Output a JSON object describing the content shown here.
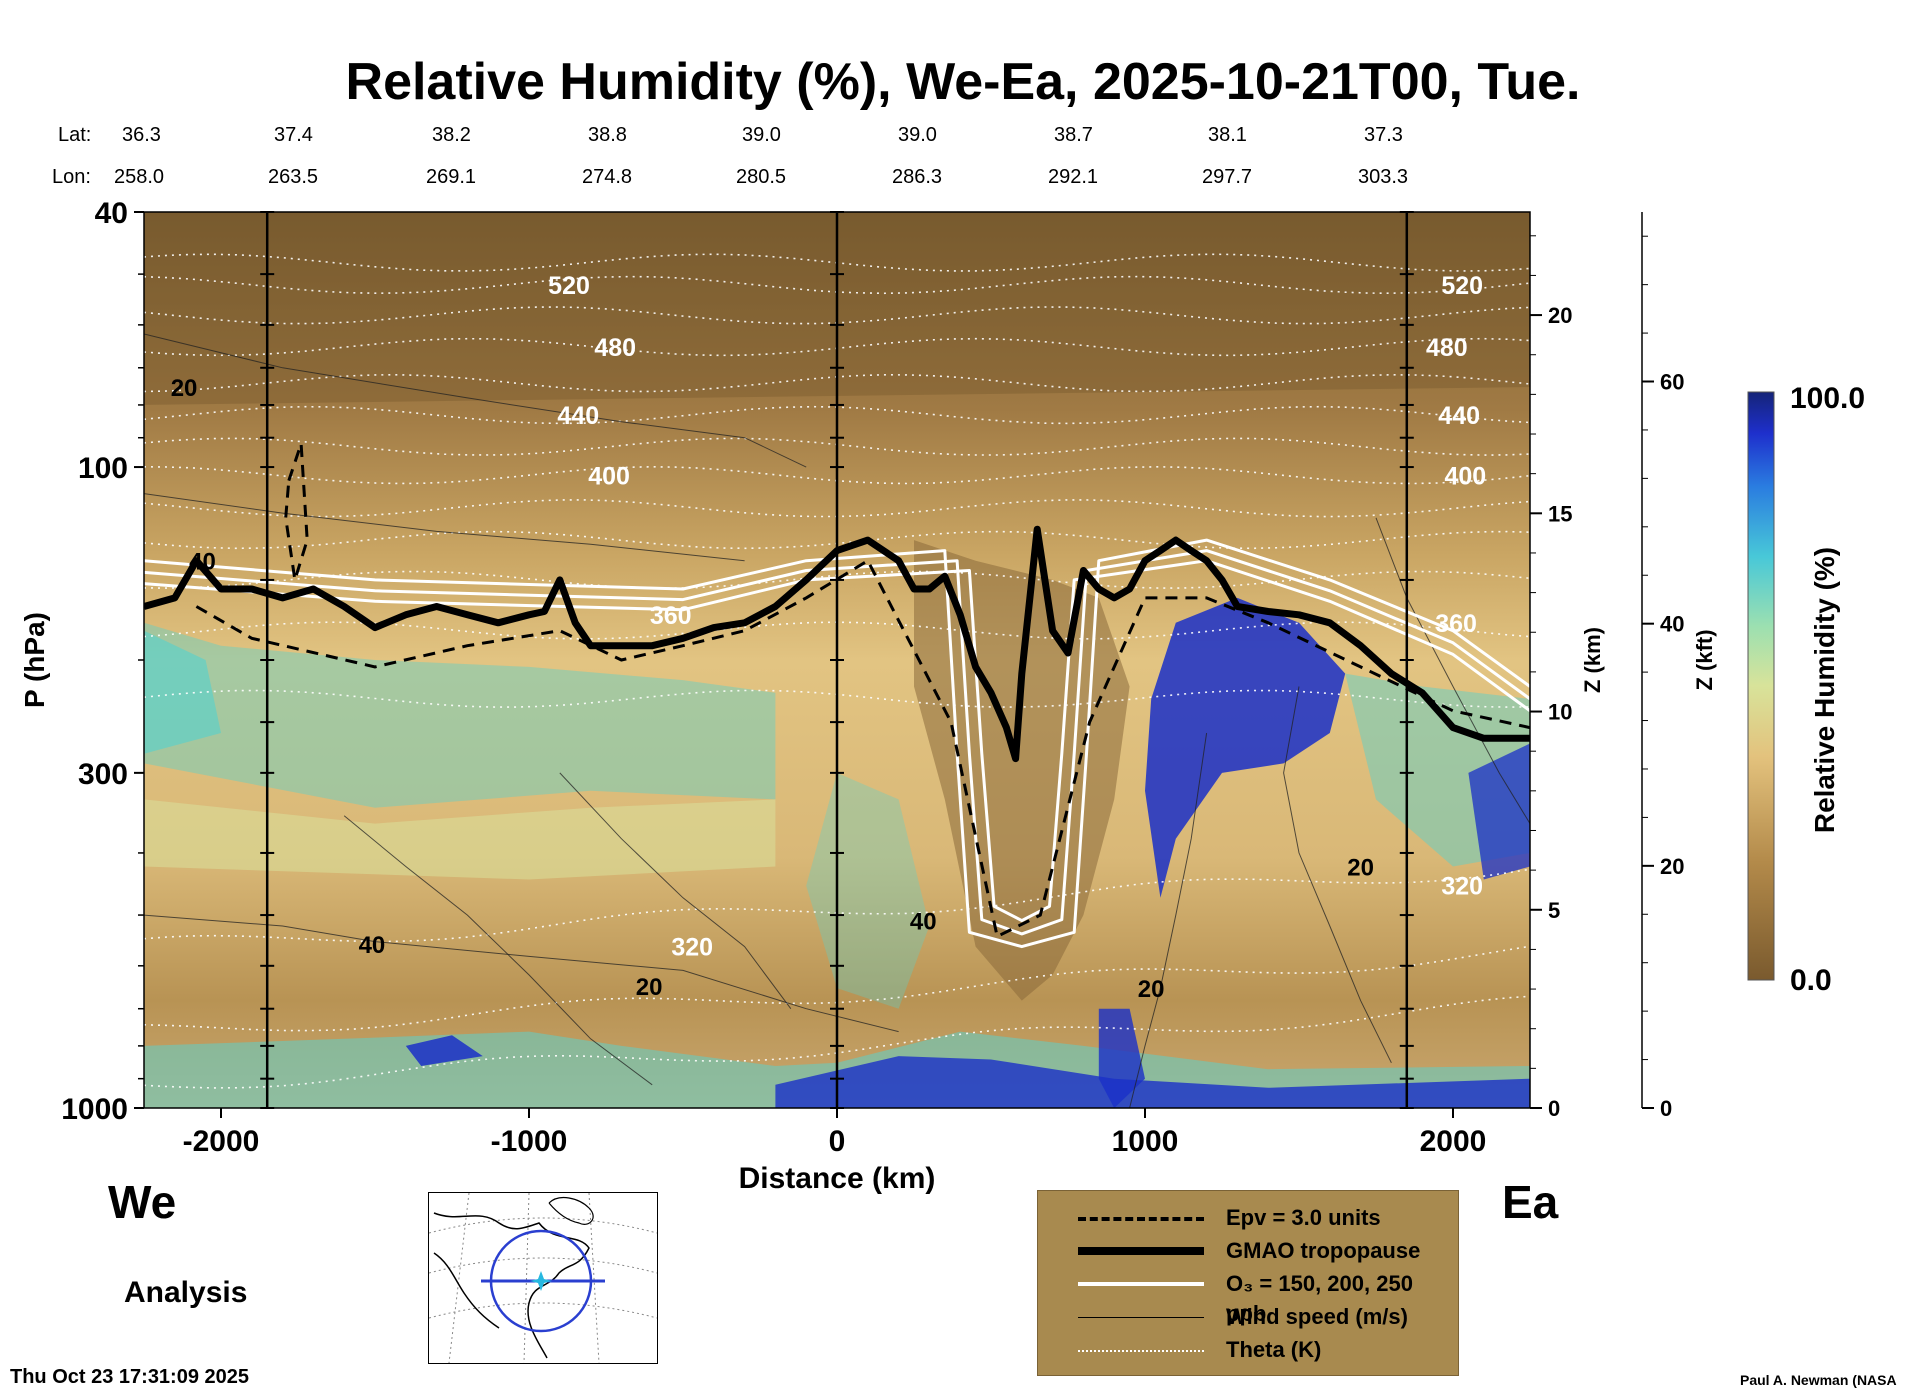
{
  "title": "Relative Humidity (%), We-Ea, 2025-10-21T00, Tue.",
  "lat_label": "Lat:",
  "lon_label": "Lon:",
  "lat_ticks": [
    "36.3",
    "37.4",
    "38.2",
    "38.8",
    "39.0",
    "39.0",
    "38.7",
    "38.1",
    "37.3"
  ],
  "lon_ticks": [
    "258.0",
    "263.5",
    "269.1",
    "274.8",
    "280.5",
    "286.3",
    "292.1",
    "297.7",
    "303.3"
  ],
  "left_label": "We",
  "right_label": "Ea",
  "analysis_label": "Analysis",
  "timestamp": "Thu Oct 23 17:31:09 2025",
  "credit": "Paul A. Newman (NASA",
  "legend": {
    "epv": "Epv = 3.0 units",
    "tropopause": "GMAO tropopause",
    "o3": "O₃ = 150, 200, 250 ppb",
    "wind": "Wind speed (m/s)",
    "theta": "Theta (K)"
  },
  "colors": {
    "dry": "#8a6a3a",
    "mid": "#e6c886",
    "moist": "#5fd0c8",
    "wet": "#1a2fc8",
    "legend_bg": "#a88a4f"
  },
  "chart_data": {
    "type": "heatmap",
    "title": "Relative Humidity (%), We-Ea, 2025-10-21T00, Tue.",
    "xlabel": "Distance (km)",
    "ylabel": "P (hPa)",
    "y2label": "Z (km)",
    "y3label": "Z (kft)",
    "colorbar_label": "Relative Humidity (%)",
    "colorbar_range": [
      0.0,
      100.0
    ],
    "colorbar_tick_labels": [
      "100.0",
      "0.0"
    ],
    "xlim": [
      -2250,
      2250
    ],
    "ylim": [
      1000,
      40
    ],
    "y_scale": "log",
    "x_ticks": [
      -2000,
      -1000,
      0,
      1000,
      2000
    ],
    "y_ticks": [
      1000,
      300,
      100,
      40
    ],
    "z_km_ticks": [
      0,
      5,
      10,
      15,
      20
    ],
    "z_kft_ticks": [
      0,
      20,
      40,
      60
    ],
    "theta_labels": [
      {
        "x": -870,
        "p": 52,
        "text": "520"
      },
      {
        "x": 2030,
        "p": 52,
        "text": "520"
      },
      {
        "x": -720,
        "p": 65,
        "text": "480"
      },
      {
        "x": 1980,
        "p": 65,
        "text": "480"
      },
      {
        "x": -840,
        "p": 83,
        "text": "440"
      },
      {
        "x": 2020,
        "p": 83,
        "text": "440"
      },
      {
        "x": -740,
        "p": 103,
        "text": "400"
      },
      {
        "x": 2040,
        "p": 103,
        "text": "400"
      },
      {
        "x": -540,
        "p": 170,
        "text": "360"
      },
      {
        "x": 2010,
        "p": 175,
        "text": "360"
      },
      {
        "x": -470,
        "p": 560,
        "text": "320"
      },
      {
        "x": 2030,
        "p": 450,
        "text": "320"
      }
    ],
    "wind_labels": [
      {
        "x": -2120,
        "p": 75,
        "text": "20"
      },
      {
        "x": -2060,
        "p": 140,
        "text": "40"
      },
      {
        "x": -1510,
        "p": 555,
        "text": "40"
      },
      {
        "x": -610,
        "p": 645,
        "text": "20"
      },
      {
        "x": 280,
        "p": 510,
        "text": "40"
      },
      {
        "x": 1020,
        "p": 650,
        "text": "20"
      },
      {
        "x": 1700,
        "p": 420,
        "text": "20"
      }
    ],
    "tropopause": {
      "x": [
        -2250,
        -2150,
        -2080,
        -2000,
        -1900,
        -1800,
        -1700,
        -1600,
        -1500,
        -1400,
        -1300,
        -1200,
        -1100,
        -1000,
        -950,
        -900,
        -850,
        -800,
        -700,
        -600,
        -500,
        -400,
        -300,
        -200,
        -100,
        0,
        100,
        200,
        250,
        300,
        350,
        400,
        450,
        500,
        550,
        580,
        600,
        650,
        700,
        750,
        800,
        850,
        900,
        950,
        1000,
        1050,
        1100,
        1150,
        1200,
        1250,
        1300,
        1400,
        1500,
        1600,
        1700,
        1800,
        1900,
        2000,
        2100,
        2250
      ],
      "p": [
        165,
        160,
        140,
        155,
        155,
        160,
        155,
        165,
        178,
        170,
        165,
        170,
        175,
        170,
        168,
        150,
        175,
        190,
        190,
        190,
        185,
        178,
        175,
        165,
        150,
        135,
        130,
        140,
        155,
        155,
        148,
        170,
        205,
        225,
        255,
        285,
        210,
        125,
        180,
        195,
        145,
        155,
        160,
        155,
        140,
        135,
        130,
        135,
        140,
        150,
        165,
        168,
        170,
        175,
        190,
        210,
        225,
        255,
        265,
        265
      ]
    },
    "o3_epv_stratosphere_intrusion": {
      "x_center": 600,
      "x_half_width": 250,
      "p_top": 130,
      "p_bottom": 560
    }
  }
}
